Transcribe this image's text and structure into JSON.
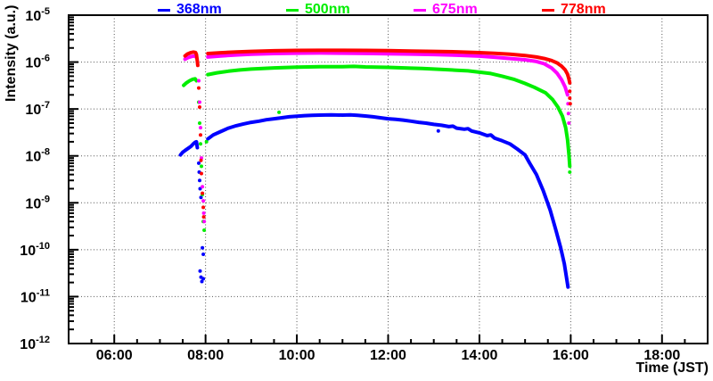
{
  "page": {
    "background": "#ffffff"
  },
  "axes": {
    "x_title": "Time (JST)",
    "y_title": "Intensity (a.u.)"
  },
  "chart_data": {
    "type": "scatter",
    "title": "",
    "xlabel": "Time (JST)",
    "ylabel": "Intensity (a.u.)",
    "x_axis": {
      "min_hour": 5,
      "max_hour": 19,
      "major_tick_hours": [
        6,
        8,
        10,
        12,
        14,
        16,
        18
      ],
      "major_tick_labels": [
        "06:00",
        "08:00",
        "10:00",
        "12:00",
        "14:00",
        "16:00",
        "18:00"
      ],
      "minor_tick_minutes": 30,
      "grid": true
    },
    "y_axis": {
      "scale": "log",
      "min": 1e-12,
      "max": 1e-05,
      "tick_exponents": [
        -5,
        -6,
        -7,
        -8,
        -9,
        -10,
        -11,
        -12
      ],
      "grid": true
    },
    "grid_color": "#555555",
    "frame_color": "#000000",
    "series": [
      {
        "name": "368nm",
        "color": "#0000ff",
        "burst": [
          [
            7.45,
            1.05e-08
          ],
          [
            7.5,
            1.2e-08
          ],
          [
            7.55,
            1.3e-08
          ],
          [
            7.62,
            1.45e-08
          ],
          [
            7.68,
            1.6e-08
          ],
          [
            7.73,
            1.8e-08
          ],
          [
            7.77,
            1.95e-08
          ],
          [
            7.8,
            2e-08
          ],
          [
            7.82,
            1.5e-08
          ]
        ],
        "scatter": [
          [
            7.85,
            7e-09
          ],
          [
            7.86,
            4.5e-09
          ],
          [
            7.87,
            3e-09
          ],
          [
            7.88,
            2e-09
          ],
          [
            7.9,
            1.3e-09
          ],
          [
            7.93,
            1.1e-10
          ],
          [
            7.95,
            8e-11
          ],
          [
            7.88,
            3.5e-11
          ],
          [
            7.9,
            2.6e-11
          ],
          [
            7.92,
            2.1e-11
          ],
          [
            7.95,
            2.4e-11
          ],
          [
            13.1,
            3.4e-08
          ]
        ],
        "main": [
          [
            8.05,
            2.3e-08
          ],
          [
            8.17,
            2.8e-08
          ],
          [
            8.33,
            3.3e-08
          ],
          [
            8.5,
            3.9e-08
          ],
          [
            8.67,
            4.4e-08
          ],
          [
            8.83,
            4.8e-08
          ],
          [
            9.0,
            5.2e-08
          ],
          [
            9.17,
            5.5e-08
          ],
          [
            9.33,
            5.9e-08
          ],
          [
            9.5,
            6.2e-08
          ],
          [
            9.67,
            6.5e-08
          ],
          [
            9.83,
            6.8e-08
          ],
          [
            10.0,
            7e-08
          ],
          [
            10.17,
            7.2e-08
          ],
          [
            10.33,
            7.3e-08
          ],
          [
            10.5,
            7.4e-08
          ],
          [
            10.75,
            7.5e-08
          ],
          [
            11.0,
            7.4e-08
          ],
          [
            11.17,
            7.5e-08
          ],
          [
            11.33,
            7.3e-08
          ],
          [
            11.5,
            7.1e-08
          ],
          [
            11.67,
            6.8e-08
          ],
          [
            11.83,
            6.5e-08
          ],
          [
            12.0,
            6.2e-08
          ],
          [
            12.17,
            6e-08
          ],
          [
            12.33,
            5.8e-08
          ],
          [
            12.5,
            5.5e-08
          ],
          [
            12.67,
            5.2e-08
          ],
          [
            12.83,
            5e-08
          ],
          [
            13.0,
            4.7e-08
          ],
          [
            13.17,
            4.5e-08
          ],
          [
            13.33,
            4.2e-08
          ],
          [
            13.42,
            4.3e-08
          ],
          [
            13.5,
            3.9e-08
          ],
          [
            13.67,
            3.7e-08
          ],
          [
            13.75,
            3.8e-08
          ],
          [
            13.83,
            3.4e-08
          ],
          [
            14.0,
            3.1e-08
          ],
          [
            14.17,
            2.7e-08
          ],
          [
            14.25,
            2.8e-08
          ],
          [
            14.33,
            2.4e-08
          ],
          [
            14.5,
            2.1e-08
          ],
          [
            14.67,
            1.8e-08
          ],
          [
            14.83,
            1.4e-08
          ],
          [
            15.0,
            1.05e-08
          ],
          [
            15.1,
            7e-09
          ],
          [
            15.25,
            4e-09
          ],
          [
            15.4,
            1.8e-09
          ],
          [
            15.55,
            7e-10
          ],
          [
            15.68,
            2.5e-10
          ],
          [
            15.78,
            1.1e-10
          ],
          [
            15.86,
            5e-11
          ],
          [
            15.91,
            2.5e-11
          ],
          [
            15.94,
            1.6e-11
          ]
        ]
      },
      {
        "name": "500nm",
        "color": "#00ee00",
        "burst": [
          [
            7.52,
            3.2e-07
          ],
          [
            7.58,
            3.6e-07
          ],
          [
            7.65,
            4e-07
          ],
          [
            7.72,
            4.3e-07
          ],
          [
            7.77,
            4.4e-07
          ],
          [
            7.8,
            4e-07
          ]
        ],
        "scatter": [
          [
            7.85,
            1.4e-07
          ],
          [
            7.87,
            5e-08
          ],
          [
            7.89,
            1.8e-08
          ],
          [
            7.91,
            6e-09
          ],
          [
            7.93,
            1.5e-09
          ],
          [
            7.95,
            4e-10
          ],
          [
            7.97,
            2.6e-10
          ],
          [
            8.02,
            2e-08
          ],
          [
            9.61,
            8.5e-08
          ],
          [
            15.98,
            4.5e-09
          ]
        ],
        "main": [
          [
            8.05,
            5.4e-07
          ],
          [
            8.25,
            5.9e-07
          ],
          [
            8.5,
            6.4e-07
          ],
          [
            8.75,
            6.8e-07
          ],
          [
            9.0,
            7.1e-07
          ],
          [
            9.25,
            7.3e-07
          ],
          [
            9.5,
            7.5e-07
          ],
          [
            10.0,
            7.8e-07
          ],
          [
            10.5,
            8e-07
          ],
          [
            11.0,
            8e-07
          ],
          [
            11.25,
            8.1e-07
          ],
          [
            11.5,
            7.9e-07
          ],
          [
            12.0,
            7.7e-07
          ],
          [
            12.5,
            7.4e-07
          ],
          [
            12.75,
            7.3e-07
          ],
          [
            13.0,
            7.1e-07
          ],
          [
            13.25,
            6.9e-07
          ],
          [
            13.5,
            6.7e-07
          ],
          [
            13.75,
            6.5e-07
          ],
          [
            14.0,
            6.1e-07
          ],
          [
            14.25,
            5.7e-07
          ],
          [
            14.5,
            5e-07
          ],
          [
            14.75,
            4.3e-07
          ],
          [
            15.0,
            3.5e-07
          ],
          [
            15.2,
            2.9e-07
          ],
          [
            15.45,
            2.2e-07
          ],
          [
            15.6,
            1.6e-07
          ],
          [
            15.72,
            1.1e-07
          ],
          [
            15.82,
            7e-08
          ],
          [
            15.89,
            4e-08
          ],
          [
            15.93,
            2.2e-08
          ],
          [
            15.96,
            1.1e-08
          ],
          [
            15.98,
            6e-09
          ]
        ]
      },
      {
        "name": "675nm",
        "color": "#ff00ff",
        "burst": [
          [
            7.55,
            1.15e-06
          ],
          [
            7.62,
            1.25e-06
          ],
          [
            7.7,
            1.32e-06
          ],
          [
            7.77,
            1.35e-06
          ],
          [
            7.8,
            1.25e-06
          ]
        ],
        "scatter": [
          [
            7.85,
            4e-07
          ],
          [
            7.87,
            1.4e-07
          ],
          [
            7.89,
            4e-08
          ],
          [
            7.91,
            9e-09
          ],
          [
            7.93,
            2.2e-09
          ],
          [
            7.95,
            1.1e-09
          ],
          [
            7.96,
            6e-10
          ],
          [
            7.97,
            4e-10
          ],
          [
            15.94,
            1.3e-07
          ],
          [
            15.95,
            8e-08
          ],
          [
            15.96,
            5e-08
          ]
        ],
        "main": [
          [
            8.05,
            1.28e-06
          ],
          [
            8.33,
            1.35e-06
          ],
          [
            8.67,
            1.42e-06
          ],
          [
            9.0,
            1.47e-06
          ],
          [
            9.5,
            1.52e-06
          ],
          [
            10.0,
            1.55e-06
          ],
          [
            10.5,
            1.56e-06
          ],
          [
            11.0,
            1.55e-06
          ],
          [
            11.5,
            1.53e-06
          ],
          [
            12.0,
            1.51e-06
          ],
          [
            12.5,
            1.48e-06
          ],
          [
            13.0,
            1.45e-06
          ],
          [
            13.5,
            1.4e-06
          ],
          [
            14.0,
            1.34e-06
          ],
          [
            14.33,
            1.27e-06
          ],
          [
            14.67,
            1.19e-06
          ],
          [
            15.0,
            1.12e-06
          ],
          [
            15.25,
            1.03e-06
          ],
          [
            15.42,
            9.2e-07
          ],
          [
            15.58,
            7.5e-07
          ],
          [
            15.7,
            5.8e-07
          ],
          [
            15.8,
            4.2e-07
          ],
          [
            15.88,
            2.9e-07
          ],
          [
            15.93,
            2e-07
          ]
        ]
      },
      {
        "name": "778nm",
        "color": "#ff0000",
        "burst": [
          [
            7.55,
            1.35e-06
          ],
          [
            7.6,
            1.48e-06
          ],
          [
            7.67,
            1.58e-06
          ],
          [
            7.73,
            1.63e-06
          ],
          [
            7.78,
            1.6e-06
          ],
          [
            7.8,
            1.45e-06
          ],
          [
            7.82,
            1.05e-06
          ],
          [
            7.83,
            8.5e-07
          ]
        ],
        "scatter": [
          [
            7.85,
            2.8e-07
          ],
          [
            7.87,
            1.1e-07
          ],
          [
            7.89,
            2.8e-08
          ],
          [
            7.9,
            8e-09
          ],
          [
            7.91,
            4.2e-09
          ],
          [
            7.93,
            1.6e-09
          ],
          [
            7.95,
            8e-10
          ],
          [
            7.96,
            5e-10
          ],
          [
            15.98,
            2.4e-07
          ],
          [
            15.98,
            1.7e-07
          ],
          [
            15.99,
            1.3e-07
          ]
        ],
        "main": [
          [
            8.05,
            1.52e-06
          ],
          [
            8.33,
            1.58e-06
          ],
          [
            8.67,
            1.64e-06
          ],
          [
            9.0,
            1.69e-06
          ],
          [
            9.5,
            1.74e-06
          ],
          [
            10.0,
            1.77e-06
          ],
          [
            10.5,
            1.78e-06
          ],
          [
            11.0,
            1.78e-06
          ],
          [
            11.5,
            1.77e-06
          ],
          [
            12.0,
            1.75e-06
          ],
          [
            12.5,
            1.72e-06
          ],
          [
            13.0,
            1.69e-06
          ],
          [
            13.5,
            1.65e-06
          ],
          [
            14.0,
            1.59e-06
          ],
          [
            14.33,
            1.54e-06
          ],
          [
            14.67,
            1.47e-06
          ],
          [
            15.0,
            1.38e-06
          ],
          [
            15.25,
            1.28e-06
          ],
          [
            15.42,
            1.19e-06
          ],
          [
            15.58,
            1.08e-06
          ],
          [
            15.7,
            9.6e-07
          ],
          [
            15.8,
            8.2e-07
          ],
          [
            15.88,
            6.8e-07
          ],
          [
            15.93,
            5.5e-07
          ],
          [
            15.96,
            4.4e-07
          ],
          [
            15.98,
            3.6e-07
          ]
        ]
      }
    ],
    "legend_position": "top",
    "marker_style": "filled-dots"
  }
}
